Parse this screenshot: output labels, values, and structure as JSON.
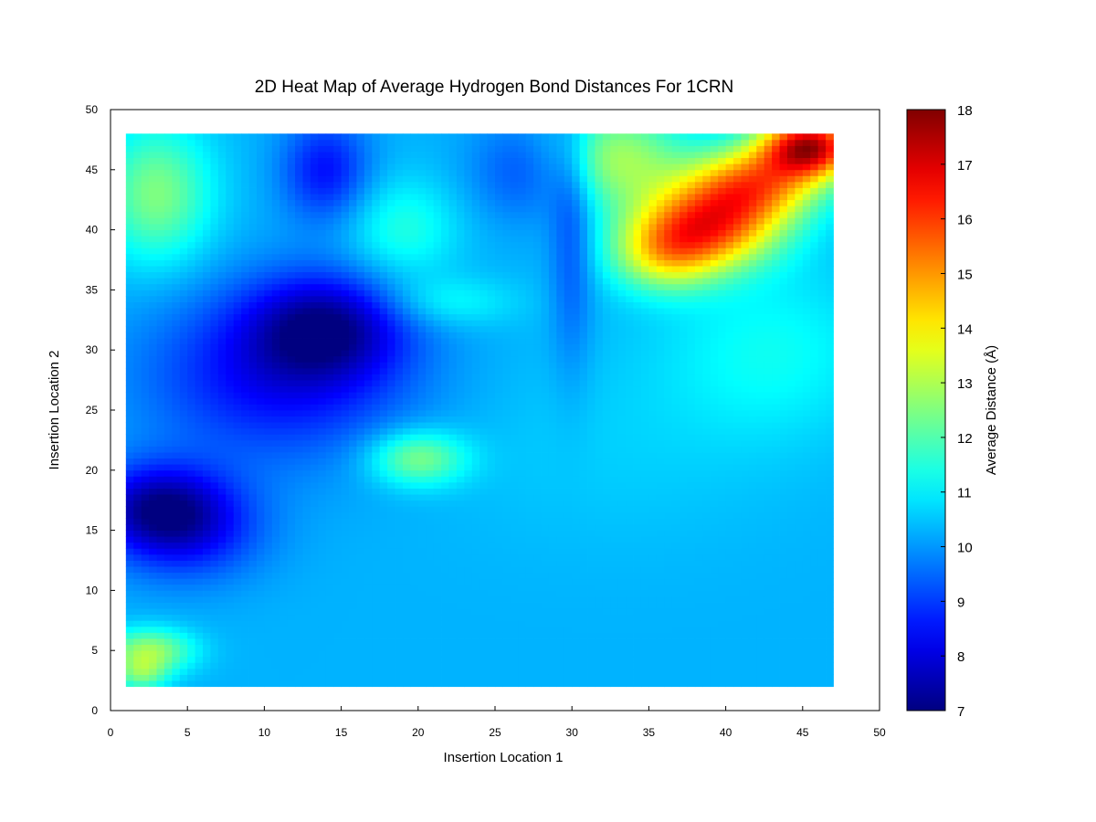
{
  "chart_data": {
    "type": "heatmap",
    "title": "2D Heat Map of Average Hydrogen Bond Distances For 1CRN",
    "xlabel": "Insertion Location 1",
    "ylabel": "Insertion Location 2",
    "colorbar_label": "Average Distance (Å)",
    "colormap": "jet",
    "xlim": [
      0,
      50
    ],
    "ylim": [
      0,
      50
    ],
    "clim": [
      7,
      18
    ],
    "x_ticks": [
      "0",
      "5",
      "10",
      "15",
      "20",
      "25",
      "30",
      "35",
      "40",
      "45",
      "50"
    ],
    "y_ticks": [
      "0",
      "5",
      "10",
      "15",
      "20",
      "25",
      "30",
      "35",
      "40",
      "45",
      "50"
    ],
    "colorbar_ticks": [
      "7",
      "8",
      "9",
      "10",
      "11",
      "12",
      "13",
      "14",
      "15",
      "16",
      "17",
      "18"
    ],
    "grid": false,
    "data_extent": {
      "x": [
        1,
        47
      ],
      "y": [
        2,
        48
      ]
    },
    "baseline_value": 10.3,
    "features": [
      {
        "x": 39,
        "y": 40.5,
        "value": 15.3,
        "sx": 3.2,
        "sy": 2.5
      },
      {
        "x": 45.5,
        "y": 47,
        "value": 17.0,
        "sx": 2.2,
        "sy": 1.8
      },
      {
        "x": 42,
        "y": 44,
        "value": 14.5,
        "sx": 3.0,
        "sy": 2.2
      },
      {
        "x": 36,
        "y": 38,
        "value": 13.2,
        "sx": 2.5,
        "sy": 2.2
      },
      {
        "x": 33,
        "y": 46,
        "value": 12.8,
        "sx": 3.0,
        "sy": 3.0
      },
      {
        "x": 11,
        "y": 28,
        "value": 8.3,
        "sx": 6,
        "sy": 5
      },
      {
        "x": 14,
        "y": 32,
        "value": 7.9,
        "sx": 3.5,
        "sy": 3
      },
      {
        "x": 3,
        "y": 17,
        "value": 8.0,
        "sx": 3,
        "sy": 2.5
      },
      {
        "x": 5,
        "y": 15,
        "value": 8.6,
        "sx": 3.5,
        "sy": 3
      },
      {
        "x": 14,
        "y": 45,
        "value": 8.5,
        "sx": 2,
        "sy": 3
      },
      {
        "x": 27,
        "y": 45,
        "value": 9.2,
        "sx": 2.5,
        "sy": 3
      },
      {
        "x": 30,
        "y": 40,
        "value": 9.2,
        "sx": 1,
        "sy": 8
      },
      {
        "x": 20,
        "y": 21,
        "value": 12.5,
        "sx": 2.2,
        "sy": 1.6
      },
      {
        "x": 3,
        "y": 43,
        "value": 12.5,
        "sx": 2.5,
        "sy": 4
      },
      {
        "x": 2.5,
        "y": 5,
        "value": 12.8,
        "sx": 2,
        "sy": 1.3
      },
      {
        "x": 19,
        "y": 40,
        "value": 11.5,
        "sx": 2.5,
        "sy": 3
      },
      {
        "x": 22,
        "y": 34,
        "value": 11.2,
        "sx": 3,
        "sy": 1.5
      },
      {
        "x": 2,
        "y": 3,
        "value": 12.0,
        "sx": 1.2,
        "sy": 1.0
      },
      {
        "x": 33,
        "y": 22,
        "value": 10.6,
        "sx": 8,
        "sy": 6
      },
      {
        "x": 43,
        "y": 30,
        "value": 11.2,
        "sx": 5,
        "sy": 5
      }
    ]
  }
}
